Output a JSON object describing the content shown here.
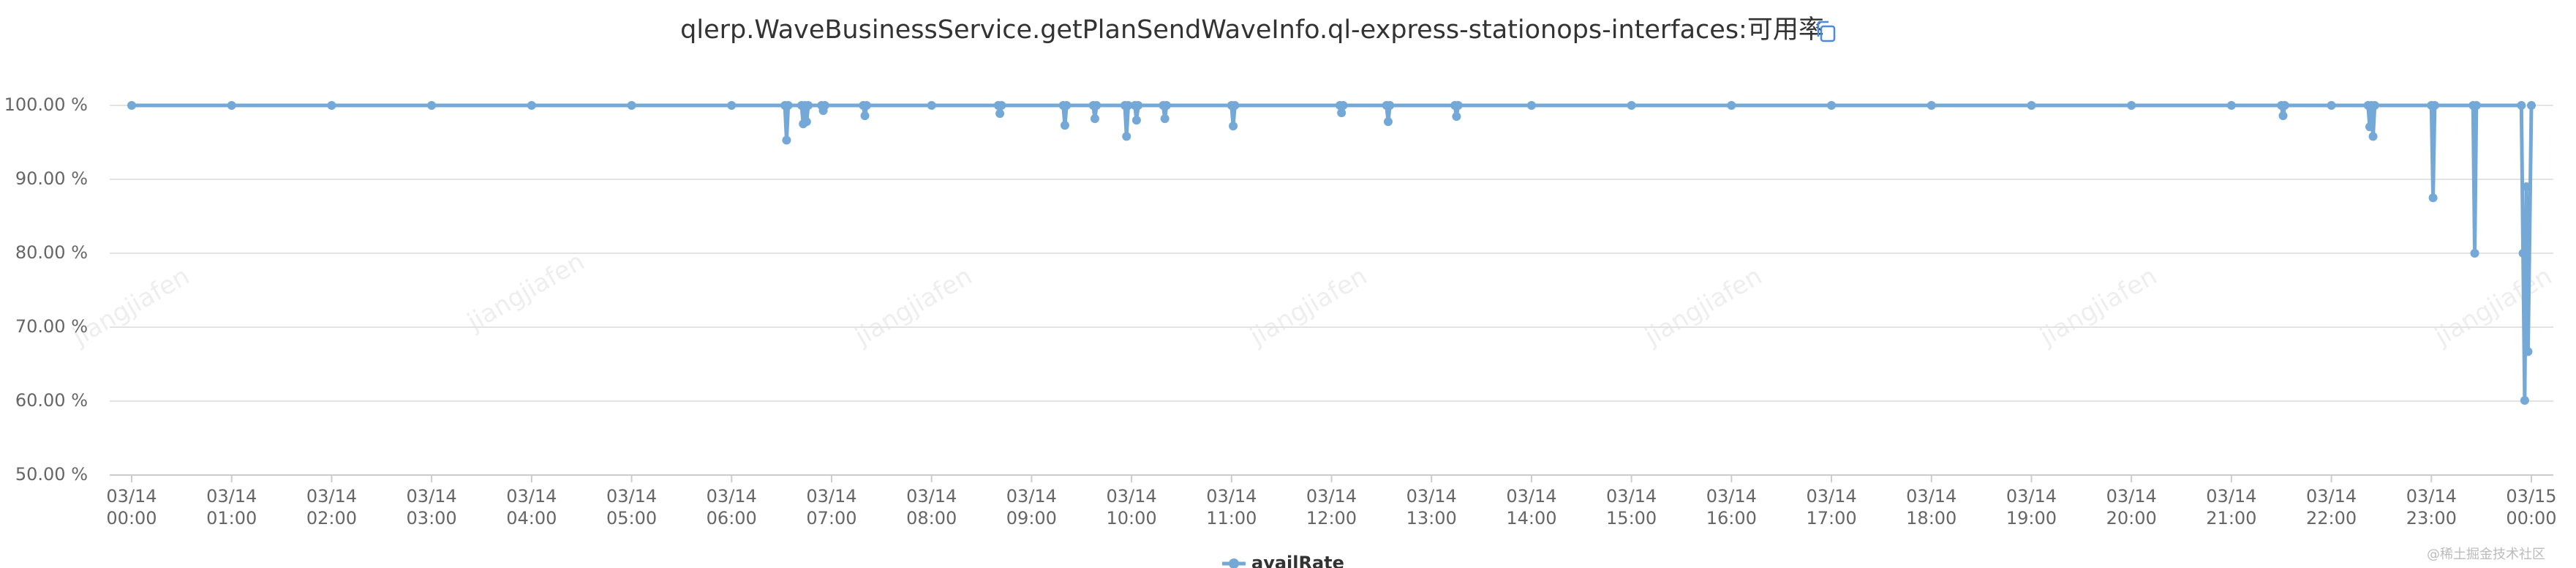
{
  "chart_data": {
    "type": "line",
    "title": "qlerp.WaveBusinessService.getPlanSendWaveInfo.ql-express-stationops-interfaces:可用率",
    "x": [
      "03/14 00:00",
      "03/14 01:00",
      "03/14 02:00",
      "03/14 03:00",
      "03/14 04:00",
      "03/14 05:00",
      "03/14 06:00",
      "03/14 06:32",
      "03/14 06:33",
      "03/14 06:34",
      "03/14 06:42",
      "03/14 06:43",
      "03/14 06:44",
      "03/14 06:45",
      "03/14 06:46",
      "03/14 06:54",
      "03/14 06:55",
      "03/14 06:56",
      "03/14 07:19",
      "03/14 07:20",
      "03/14 07:21",
      "03/14 08:00",
      "03/14 08:40",
      "03/14 08:41",
      "03/14 08:42",
      "03/14 09:19",
      "03/14 09:20",
      "03/14 09:21",
      "03/14 09:37",
      "03/14 09:38",
      "03/14 09:39",
      "03/14 09:56",
      "03/14 09:57",
      "03/14 09:58",
      "03/14 10:02",
      "03/14 10:03",
      "03/14 10:04",
      "03/14 10:19",
      "03/14 10:20",
      "03/14 10:21",
      "03/14 11:00",
      "03/14 11:01",
      "03/14 11:02",
      "03/14 12:05",
      "03/14 12:06",
      "03/14 12:07",
      "03/14 12:33",
      "03/14 12:34",
      "03/14 12:35",
      "03/14 13:14",
      "03/14 13:15",
      "03/14 13:16",
      "03/14 14:00",
      "03/14 15:00",
      "03/14 16:00",
      "03/14 17:00",
      "03/14 18:00",
      "03/14 19:00",
      "03/14 20:00",
      "03/14 21:00",
      "03/14 21:30",
      "03/14 21:31",
      "03/14 21:32",
      "03/14 22:00",
      "03/14 22:22",
      "03/14 22:23",
      "03/14 22:24",
      "03/14 22:25",
      "03/14 22:26",
      "03/14 23:00",
      "03/14 23:01",
      "03/14 23:02",
      "03/14 23:25",
      "03/14 23:26",
      "03/14 23:27",
      "03/14 23:54",
      "03/14 23:55",
      "03/14 23:56",
      "03/14 23:57",
      "03/14 23:58",
      "03/15 00:00"
    ],
    "series": [
      {
        "name": "availRate",
        "color": "#74a8d6",
        "values": [
          100,
          100,
          100,
          100,
          100,
          100,
          100,
          100,
          95.3,
          100,
          100,
          97.5,
          100,
          97.8,
          100,
          100,
          99.3,
          100,
          100,
          98.6,
          100,
          100,
          100,
          98.9,
          100,
          100,
          97.3,
          100,
          100,
          98.2,
          100,
          100,
          95.8,
          100,
          100,
          98,
          100,
          100,
          98.2,
          100,
          100,
          97.2,
          100,
          100,
          99,
          100,
          100,
          97.8,
          100,
          100,
          98.5,
          100,
          100,
          100,
          100,
          100,
          100,
          100,
          100,
          100,
          100,
          98.6,
          100,
          100,
          100,
          97.1,
          100,
          95.8,
          100,
          100,
          87.5,
          100,
          100,
          80,
          100,
          100,
          80,
          60.1,
          89,
          66.7,
          100
        ]
      }
    ],
    "xticks": [
      "03/14 00:00",
      "03/14 01:00",
      "03/14 02:00",
      "03/14 03:00",
      "03/14 04:00",
      "03/14 05:00",
      "03/14 06:00",
      "03/14 07:00",
      "03/14 08:00",
      "03/14 09:00",
      "03/14 10:00",
      "03/14 11:00",
      "03/14 12:00",
      "03/14 13:00",
      "03/14 14:00",
      "03/14 15:00",
      "03/14 16:00",
      "03/14 17:00",
      "03/14 18:00",
      "03/14 19:00",
      "03/14 20:00",
      "03/14 21:00",
      "03/14 22:00",
      "03/14 23:00",
      "03/15 00:00"
    ],
    "xlim": [
      "03/14 00:00",
      "03/15 00:00"
    ],
    "ylim": [
      50,
      100
    ],
    "yticks": [
      {
        "value": 50,
        "label": "50.00 %"
      },
      {
        "value": 60,
        "label": "60.00 %"
      },
      {
        "value": 70,
        "label": "70.00 %"
      },
      {
        "value": 80,
        "label": "80.00 %"
      },
      {
        "value": 90,
        "label": "90.00 %"
      },
      {
        "value": 100,
        "label": "100.00 %"
      }
    ],
    "grid": true,
    "legend": "bottom",
    "watermark": "jiangjiafen",
    "footer": "@稀土掘金技术社区"
  }
}
